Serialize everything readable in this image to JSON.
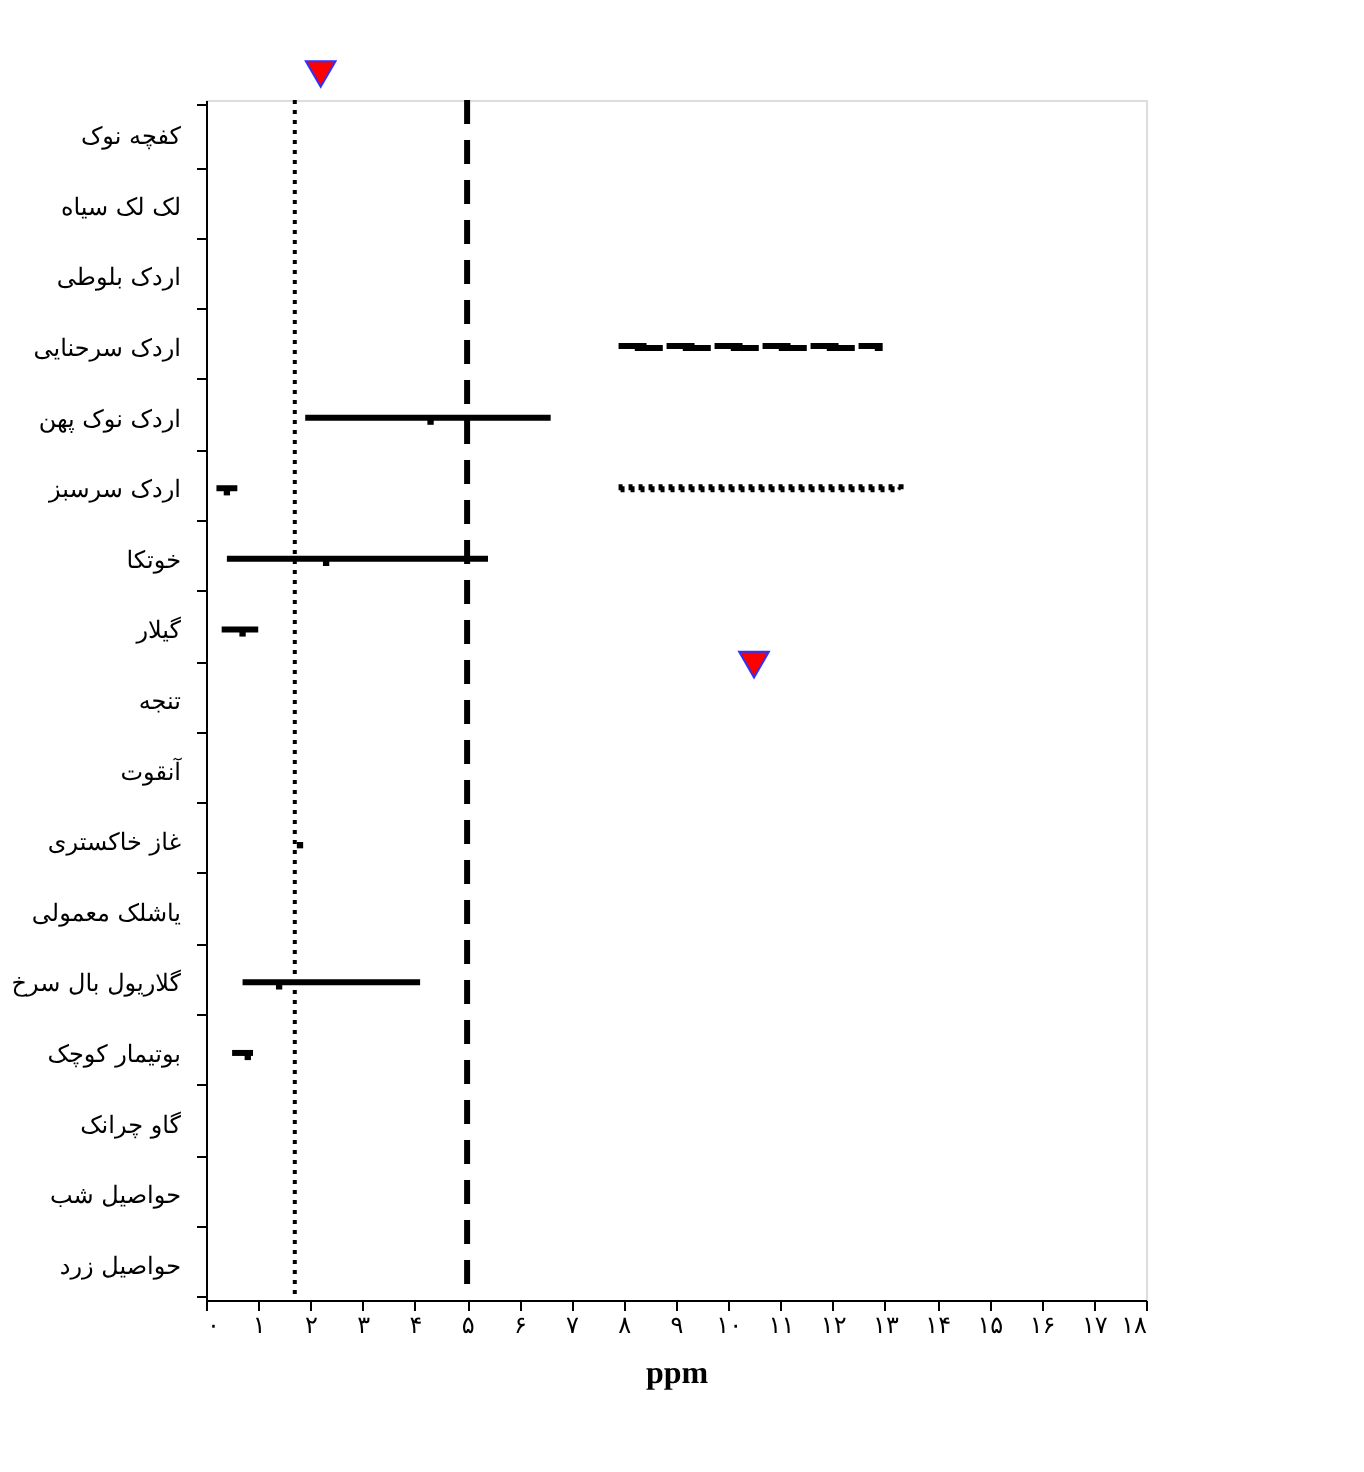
{
  "chart_data": {
    "type": "bar",
    "orientation": "horizontal",
    "xlabel": "ppm",
    "grid": false,
    "categories": [
      "کفچه نوک",
      "لک لک سیاه",
      "اردک بلوطی",
      "اردک سرحنایی",
      "اردک نوک پهن",
      "اردک سرسبز",
      "خوتکا",
      "گیلار",
      "تنجه",
      "آنقوت",
      "غاز خاکستری",
      "یاشلک معمولی",
      "گلاریول بال سرخ",
      "بوتیمار کوچک",
      "گاو چرانک",
      "حواصیل شب",
      "حواصیل زرد"
    ],
    "xlim": [
      0,
      18
    ],
    "xticks": [
      {
        "value": 0,
        "label": "۰"
      },
      {
        "value": 1,
        "label": "۱"
      },
      {
        "value": 2,
        "label": "۲"
      },
      {
        "value": 3,
        "label": "۳"
      },
      {
        "value": 4,
        "label": "۴"
      },
      {
        "value": 5,
        "label": "۵"
      },
      {
        "value": 6,
        "label": "۶"
      },
      {
        "value": 7,
        "label": "۷"
      },
      {
        "value": 8,
        "label": "۸"
      },
      {
        "value": 9,
        "label": "۹"
      },
      {
        "value": 10,
        "label": "۱۰"
      },
      {
        "value": 11,
        "label": "۱۱"
      },
      {
        "value": 12,
        "label": "۱۲"
      },
      {
        "value": 13,
        "label": "۱۳"
      },
      {
        "value": 14,
        "label": "۱۴"
      },
      {
        "value": 15,
        "label": "۱۵"
      },
      {
        "value": 16,
        "label": "۱۶"
      },
      {
        "value": 17,
        "label": "۱۷"
      },
      {
        "value": 18,
        "label": "۱۸"
      }
    ],
    "series": [
      {
        "color": "#000000",
        "base": [
          null,
          null,
          null,
          null,
          1.9,
          0.2,
          0.4,
          0.3,
          null,
          null,
          null,
          null,
          0.7,
          0.5,
          null,
          null,
          null
        ],
        "values": [
          null,
          null,
          null,
          null,
          4.7,
          0.4,
          5.0,
          0.7,
          null,
          null,
          null,
          null,
          3.4,
          0.4,
          null,
          null,
          null
        ]
      },
      {
        "type": "scatter",
        "marker": "square",
        "color": "#000000",
        "values": [
          null,
          null,
          null,
          null,
          4.3,
          0.4,
          2.3,
          0.7,
          null,
          null,
          1.8,
          null,
          1.4,
          0.8,
          null,
          null,
          null
        ]
      },
      {
        "line_style": "dashed",
        "color": "#000000",
        "base": [
          null,
          null,
          null,
          7.9,
          null,
          null,
          null,
          null,
          null,
          null,
          null,
          null,
          null,
          null,
          null,
          null,
          null
        ],
        "values": [
          null,
          null,
          null,
          5.0,
          null,
          null,
          null,
          null,
          null,
          null,
          null,
          null,
          null,
          null,
          null,
          null,
          null
        ]
      },
      {
        "line_style": "dotted",
        "color": "#000000",
        "base": [
          null,
          null,
          null,
          null,
          null,
          7.9,
          null,
          null,
          null,
          null,
          null,
          null,
          null,
          null,
          null,
          null,
          null
        ],
        "values": [
          null,
          null,
          null,
          null,
          null,
          5.4,
          null,
          null,
          null,
          null,
          null,
          null,
          null,
          null,
          null,
          null,
          null
        ]
      }
    ],
    "ref_lines": [
      {
        "axis": "x",
        "value": 1.7,
        "line_style": "dotted",
        "color": "#000000"
      },
      {
        "axis": "x",
        "value": 5,
        "line_style": "dashed",
        "color": "#000000"
      }
    ]
  }
}
